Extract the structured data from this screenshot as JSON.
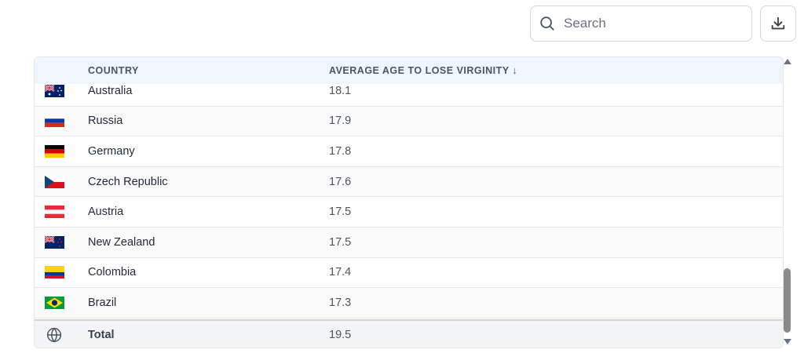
{
  "search": {
    "placeholder": "Search"
  },
  "toolbar": {
    "download_icon": "download-icon",
    "search_icon": "search-icon"
  },
  "table": {
    "headers": {
      "country": "COUNTRY",
      "average_age": "AVERAGE AGE TO LOSE VIRGINITY ↓"
    },
    "sort": {
      "column": "average_age",
      "direction": "descending"
    },
    "rows": [
      {
        "country": "Australia",
        "value": "18.1",
        "flag": "australia-flag-icon"
      },
      {
        "country": "Russia",
        "value": "17.9",
        "flag": "russia-flag-icon"
      },
      {
        "country": "Germany",
        "value": "17.8",
        "flag": "germany-flag-icon"
      },
      {
        "country": "Czech Republic",
        "value": "17.6",
        "flag": "czech-republic-flag-icon"
      },
      {
        "country": "Austria",
        "value": "17.5",
        "flag": "austria-flag-icon"
      },
      {
        "country": "New Zealand",
        "value": "17.5",
        "flag": "new-zealand-flag-icon"
      },
      {
        "country": "Colombia",
        "value": "17.4",
        "flag": "colombia-flag-icon"
      },
      {
        "country": "Brazil",
        "value": "17.3",
        "flag": "brazil-flag-icon"
      }
    ],
    "total": {
      "label": "Total",
      "value": "19.5",
      "icon": "globe-icon"
    }
  },
  "colors": {
    "header_bg": "#eff6ff",
    "total_bg": "#f3f4f6",
    "border": "#e5e7eb"
  }
}
